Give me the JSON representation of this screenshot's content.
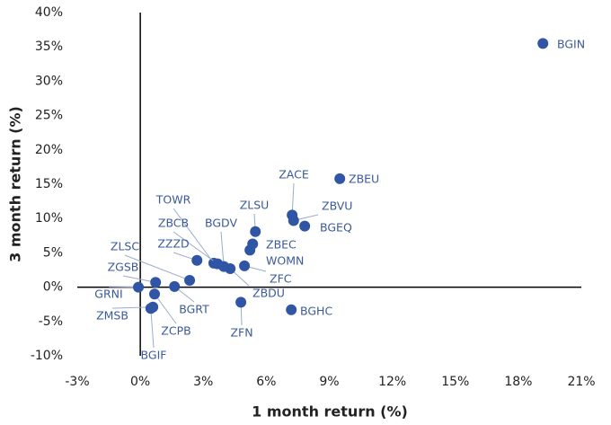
{
  "chart_data": {
    "type": "scatter",
    "x_label": "1 month return (%)",
    "y_label": "3 month return (%)",
    "color": "#2f55a4",
    "xlim": [
      -3,
      21
    ],
    "ylim": [
      -10,
      40
    ],
    "xticks": [
      {
        "value": -3,
        "label": "-3%"
      },
      {
        "value": 0,
        "label": "0%"
      },
      {
        "value": 3,
        "label": "3%"
      },
      {
        "value": 6,
        "label": "6%"
      },
      {
        "value": 9,
        "label": "9%"
      },
      {
        "value": 12,
        "label": "12%"
      },
      {
        "value": 15,
        "label": "15%"
      },
      {
        "value": 18,
        "label": "18%"
      },
      {
        "value": 21,
        "label": "21%"
      }
    ],
    "yticks": [
      {
        "value": -10,
        "label": "-10%"
      },
      {
        "value": -5,
        "label": "-5%"
      },
      {
        "value": 0,
        "label": "0%"
      },
      {
        "value": 5,
        "label": "5%"
      },
      {
        "value": 10,
        "label": "10%"
      },
      {
        "value": 15,
        "label": "15%"
      },
      {
        "value": 20,
        "label": "20%"
      },
      {
        "value": 25,
        "label": "25%"
      },
      {
        "value": 30,
        "label": "30%"
      },
      {
        "value": 35,
        "label": "35%"
      },
      {
        "value": 40,
        "label": "40%"
      }
    ],
    "labels": [
      "BGIN",
      "ZBEU",
      "ZACE",
      "ZBVU",
      "BGEQ",
      "ZLSU",
      "ZBEC",
      "WOMN",
      "ZFC",
      "ZBDU",
      "ZFN",
      "BGHC",
      "TOWR",
      "ZBCB",
      "BGDV",
      "ZZZD",
      "ZLSC",
      "ZGSB",
      "GRNI",
      "ZMSB",
      "ZCPB",
      "BGIF",
      "BGRT"
    ],
    "x": [
      19.17,
      9.5,
      7.23,
      7.3,
      7.83,
      5.48,
      5.35,
      5.22,
      4.96,
      4.28,
      4.79,
      7.19,
      3.5,
      3.68,
      3.98,
      2.7,
      2.35,
      0.73,
      -0.09,
      0.6,
      0.68,
      0.5,
      1.63
    ],
    "y": [
      35.5,
      15.8,
      10.5,
      9.7,
      8.9,
      8.1,
      6.3,
      5.4,
      3.1,
      2.7,
      -2.2,
      -3.3,
      3.5,
      3.4,
      3.0,
      3.9,
      1.0,
      0.7,
      0.0,
      -2.9,
      -1.0,
      -3.1,
      0.1
    ]
  }
}
